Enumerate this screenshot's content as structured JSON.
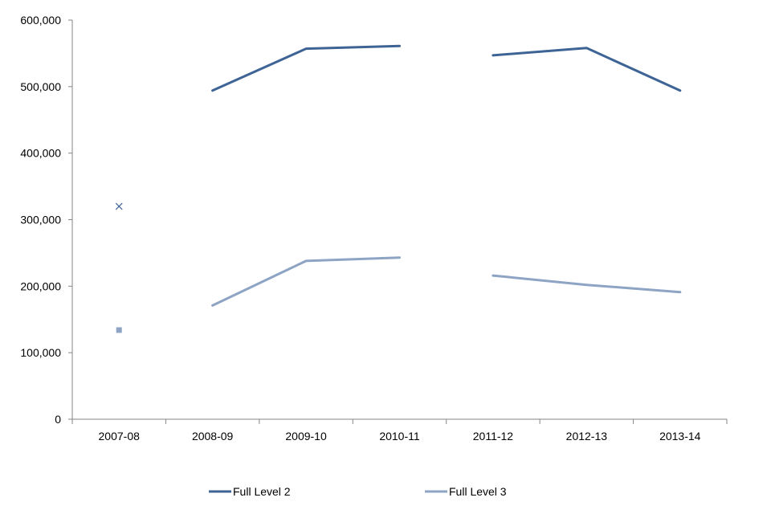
{
  "chart_data": {
    "type": "line",
    "title": "",
    "xlabel": "",
    "ylabel": "",
    "categories": [
      "2007-08",
      "2008-09",
      "2009-10",
      "2010-11",
      "2011-12",
      "2012-13",
      "2013-14"
    ],
    "ylim": [
      0,
      600000
    ],
    "yticks": [
      0,
      100000,
      200000,
      300000,
      400000,
      500000,
      600000
    ],
    "ytick_labels": [
      "0",
      "100,000",
      "200,000",
      "300,000",
      "400,000",
      "500,000",
      "600,000"
    ],
    "grid": false,
    "legend_position": "bottom",
    "series": [
      {
        "name": "Full Level 2",
        "color": "#3E6496",
        "values": [
          320000,
          494000,
          557000,
          561000,
          547000,
          558000,
          494000
        ],
        "segments": [
          [
            0,
            0
          ],
          [
            1,
            3
          ],
          [
            4,
            6
          ]
        ],
        "marker_first": "x"
      },
      {
        "name": "Full Level 3",
        "color": "#8EA4C4",
        "values": [
          134000,
          171000,
          238000,
          243000,
          216000,
          202000,
          191000
        ],
        "segments": [
          [
            0,
            0
          ],
          [
            1,
            3
          ],
          [
            4,
            6
          ]
        ],
        "marker_first": "square"
      }
    ]
  }
}
